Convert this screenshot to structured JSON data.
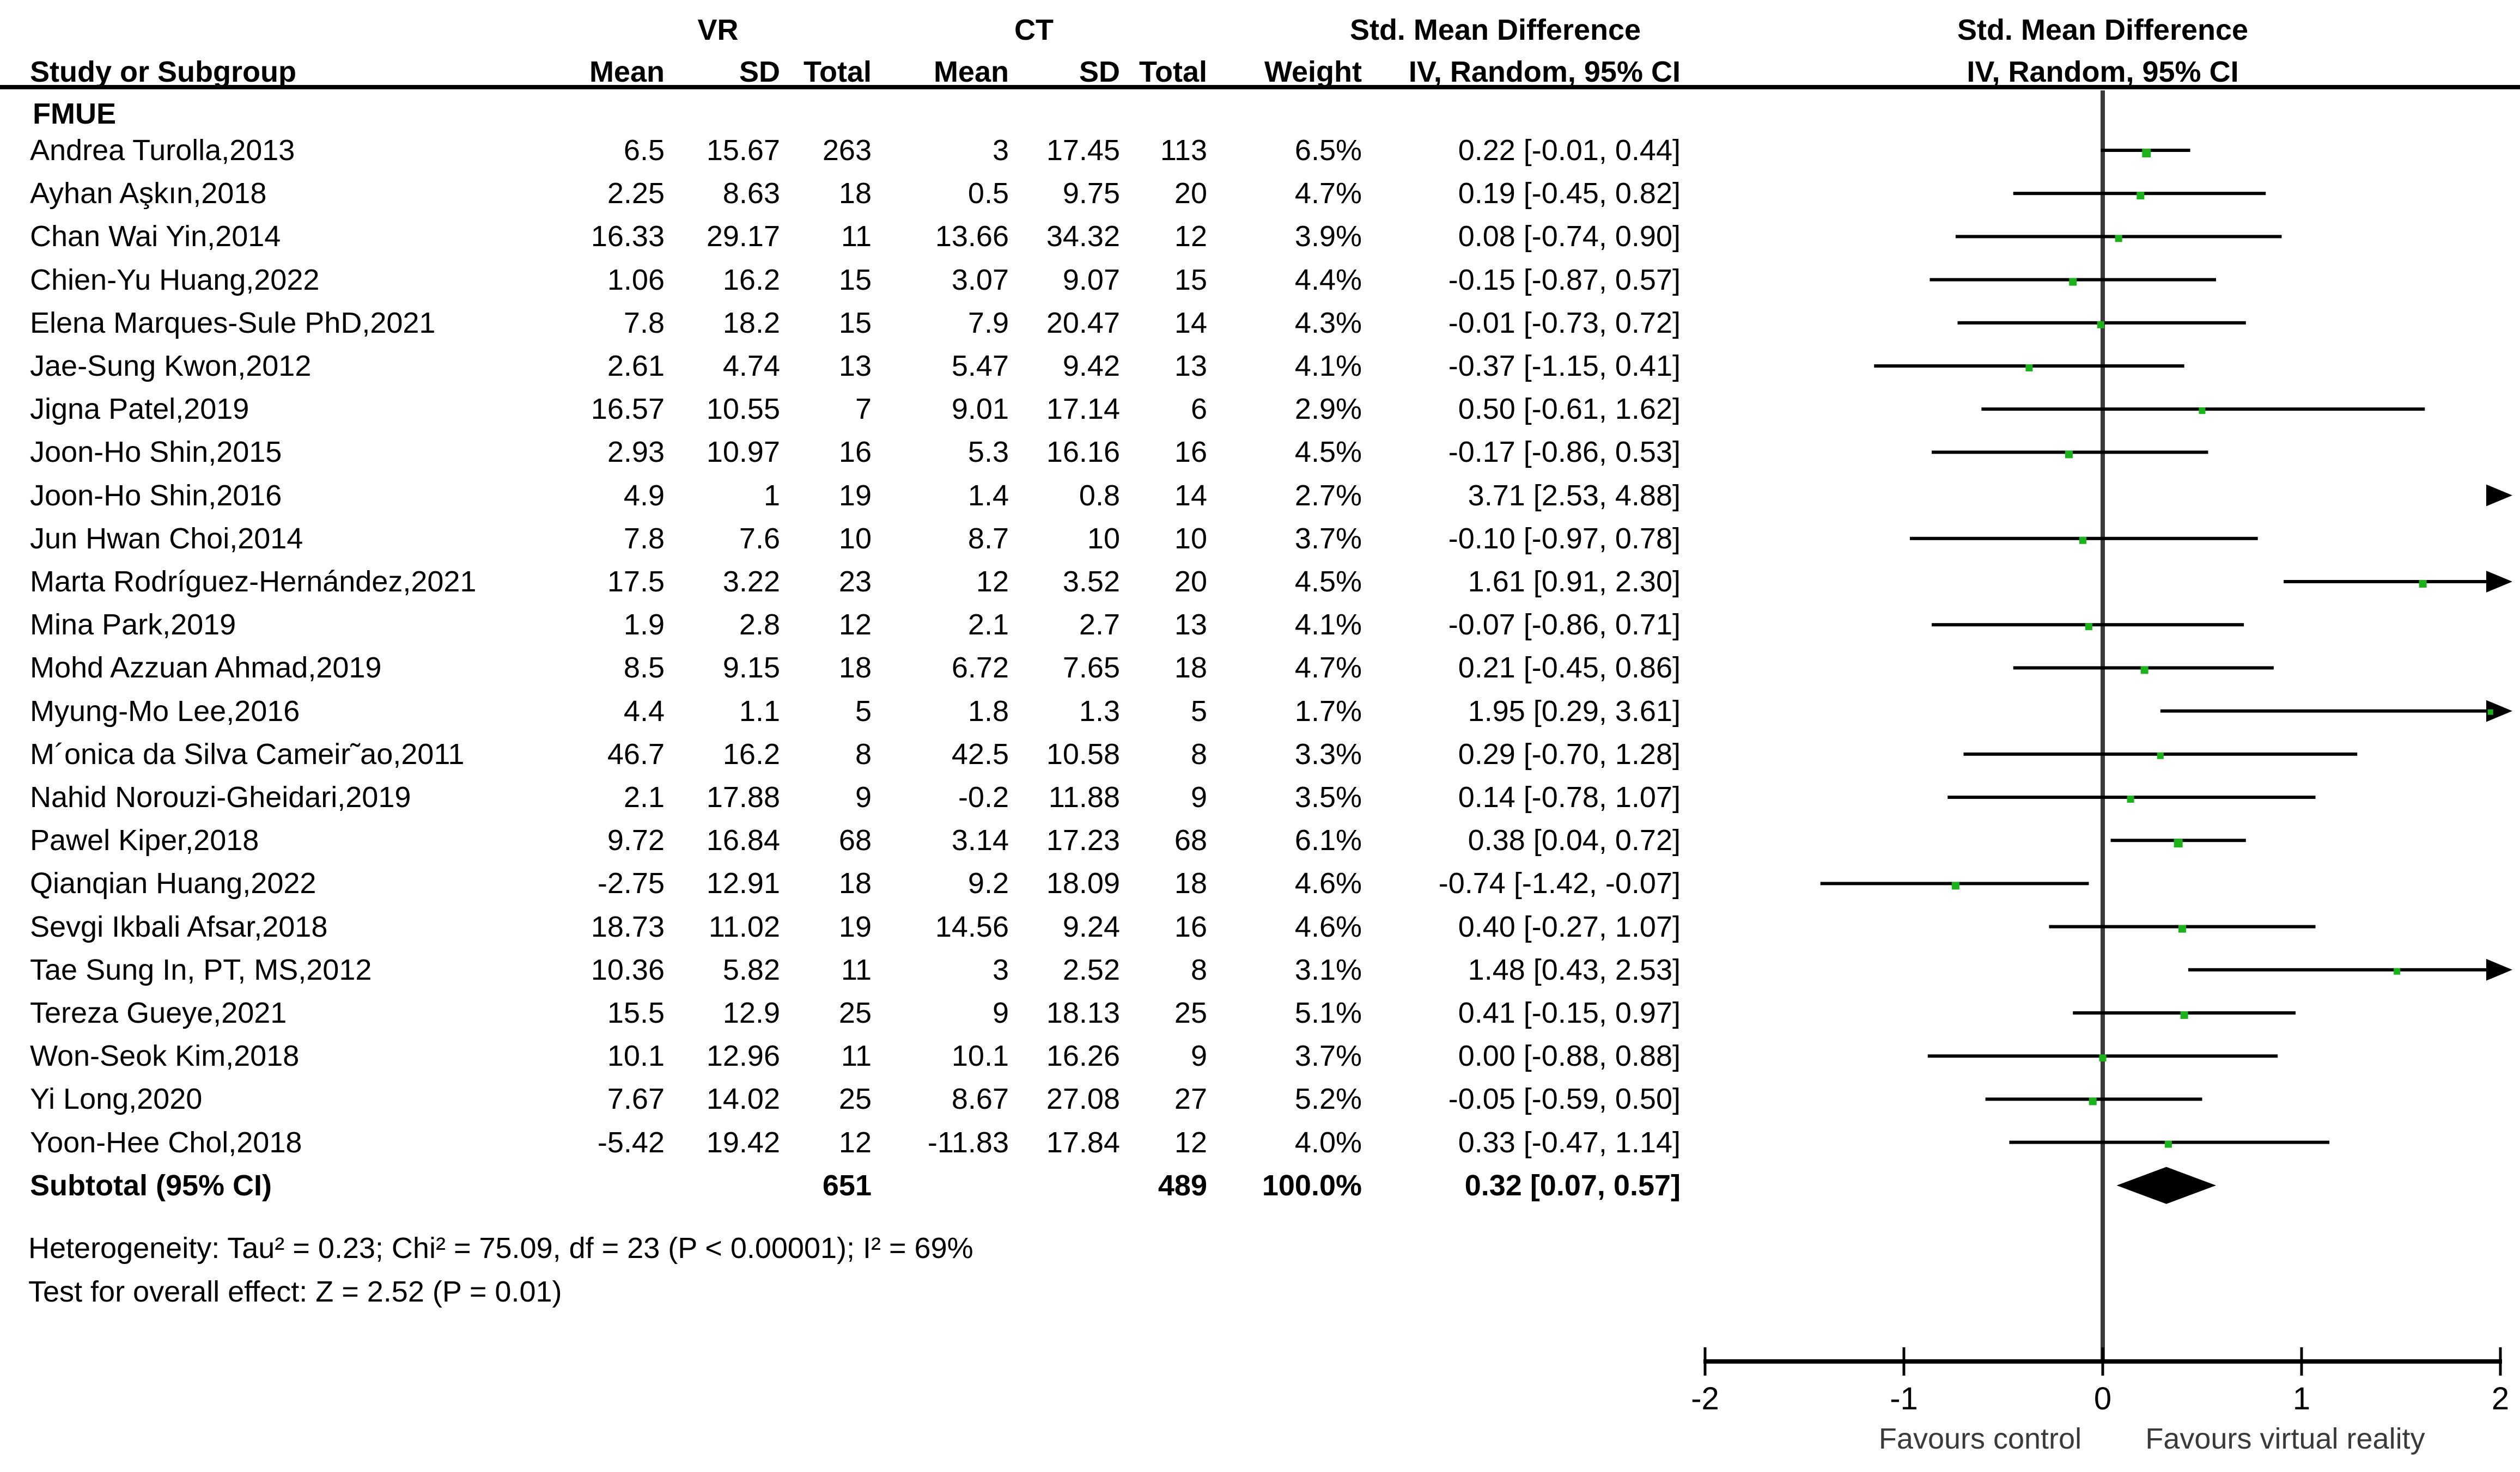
{
  "header": {
    "study": "Study or Subgroup",
    "vr": "VR",
    "ct": "CT",
    "mean": "Mean",
    "sd": "SD",
    "total": "Total",
    "weight": "Weight",
    "smd_line1": "Std. Mean Difference",
    "smd_line2": "IV, Random, 95% CI",
    "plot_line1": "Std. Mean Difference",
    "plot_line2": "IV, Random, 95% CI"
  },
  "chart_data": {
    "type": "forest",
    "effect_measure": "Std. Mean Difference",
    "model": "IV, Random, 95% CI",
    "subgroup_label": "FMUE",
    "x_range": [
      -2,
      2
    ],
    "x_ticks": [
      -2,
      -1,
      0,
      1,
      2
    ],
    "favours_left": "Favours control",
    "favours_right": "Favours virtual reality",
    "colors": {
      "marker": "#1CB21C",
      "line": "#000000",
      "diamond": "#000000",
      "zero_line": "#3A3A3A"
    },
    "studies": [
      {
        "name": "Andrea Turolla,2013",
        "vr_mean": "6.5",
        "vr_sd": "15.67",
        "vr_total": "263",
        "ct_mean": "3",
        "ct_sd": "17.45",
        "ct_total": "113",
        "weight": "6.5%",
        "ci_text": "0.22 [-0.01, 0.44]",
        "est": 0.22,
        "lo": -0.01,
        "hi": 0.44
      },
      {
        "name": "Ayhan Aşkın,2018",
        "vr_mean": "2.25",
        "vr_sd": "8.63",
        "vr_total": "18",
        "ct_mean": "0.5",
        "ct_sd": "9.75",
        "ct_total": "20",
        "weight": "4.7%",
        "ci_text": "0.19 [-0.45, 0.82]",
        "est": 0.19,
        "lo": -0.45,
        "hi": 0.82
      },
      {
        "name": "Chan Wai Yin,2014",
        "vr_mean": "16.33",
        "vr_sd": "29.17",
        "vr_total": "11",
        "ct_mean": "13.66",
        "ct_sd": "34.32",
        "ct_total": "12",
        "weight": "3.9%",
        "ci_text": "0.08 [-0.74, 0.90]",
        "est": 0.08,
        "lo": -0.74,
        "hi": 0.9
      },
      {
        "name": "Chien-Yu Huang,2022",
        "vr_mean": "1.06",
        "vr_sd": "16.2",
        "vr_total": "15",
        "ct_mean": "3.07",
        "ct_sd": "9.07",
        "ct_total": "15",
        "weight": "4.4%",
        "ci_text": "-0.15 [-0.87, 0.57]",
        "est": -0.15,
        "lo": -0.87,
        "hi": 0.57
      },
      {
        "name": "Elena Marques-Sule PhD,2021",
        "vr_mean": "7.8",
        "vr_sd": "18.2",
        "vr_total": "15",
        "ct_mean": "7.9",
        "ct_sd": "20.47",
        "ct_total": "14",
        "weight": "4.3%",
        "ci_text": "-0.01 [-0.73, 0.72]",
        "est": -0.01,
        "lo": -0.73,
        "hi": 0.72
      },
      {
        "name": "Jae-Sung Kwon,2012",
        "vr_mean": "2.61",
        "vr_sd": "4.74",
        "vr_total": "13",
        "ct_mean": "5.47",
        "ct_sd": "9.42",
        "ct_total": "13",
        "weight": "4.1%",
        "ci_text": "-0.37 [-1.15, 0.41]",
        "est": -0.37,
        "lo": -1.15,
        "hi": 0.41
      },
      {
        "name": "Jigna Patel,2019",
        "vr_mean": "16.57",
        "vr_sd": "10.55",
        "vr_total": "7",
        "ct_mean": "9.01",
        "ct_sd": "17.14",
        "ct_total": "6",
        "weight": "2.9%",
        "ci_text": "0.50 [-0.61, 1.62]",
        "est": 0.5,
        "lo": -0.61,
        "hi": 1.62
      },
      {
        "name": "Joon-Ho Shin,2015",
        "vr_mean": "2.93",
        "vr_sd": "10.97",
        "vr_total": "16",
        "ct_mean": "5.3",
        "ct_sd": "16.16",
        "ct_total": "16",
        "weight": "4.5%",
        "ci_text": "-0.17 [-0.86, 0.53]",
        "est": -0.17,
        "lo": -0.86,
        "hi": 0.53
      },
      {
        "name": "Joon-Ho Shin,2016",
        "vr_mean": "4.9",
        "vr_sd": "1",
        "vr_total": "19",
        "ct_mean": "1.4",
        "ct_sd": "0.8",
        "ct_total": "14",
        "weight": "2.7%",
        "ci_text": "3.71 [2.53, 4.88]",
        "est": 3.71,
        "lo": 2.53,
        "hi": 4.88
      },
      {
        "name": "Jun Hwan Choi,2014",
        "vr_mean": "7.8",
        "vr_sd": "7.6",
        "vr_total": "10",
        "ct_mean": "8.7",
        "ct_sd": "10",
        "ct_total": "10",
        "weight": "3.7%",
        "ci_text": "-0.10 [-0.97, 0.78]",
        "est": -0.1,
        "lo": -0.97,
        "hi": 0.78
      },
      {
        "name": "Marta Rodríguez-Hernández,2021",
        "vr_mean": "17.5",
        "vr_sd": "3.22",
        "vr_total": "23",
        "ct_mean": "12",
        "ct_sd": "3.52",
        "ct_total": "20",
        "weight": "4.5%",
        "ci_text": "1.61 [0.91, 2.30]",
        "est": 1.61,
        "lo": 0.91,
        "hi": 2.3
      },
      {
        "name": "Mina Park,2019",
        "vr_mean": "1.9",
        "vr_sd": "2.8",
        "vr_total": "12",
        "ct_mean": "2.1",
        "ct_sd": "2.7",
        "ct_total": "13",
        "weight": "4.1%",
        "ci_text": "-0.07 [-0.86, 0.71]",
        "est": -0.07,
        "lo": -0.86,
        "hi": 0.71
      },
      {
        "name": "Mohd Azzuan Ahmad,2019",
        "vr_mean": "8.5",
        "vr_sd": "9.15",
        "vr_total": "18",
        "ct_mean": "6.72",
        "ct_sd": "7.65",
        "ct_total": "18",
        "weight": "4.7%",
        "ci_text": "0.21 [-0.45, 0.86]",
        "est": 0.21,
        "lo": -0.45,
        "hi": 0.86
      },
      {
        "name": "Myung-Mo Lee,2016",
        "vr_mean": "4.4",
        "vr_sd": "1.1",
        "vr_total": "5",
        "ct_mean": "1.8",
        "ct_sd": "1.3",
        "ct_total": "5",
        "weight": "1.7%",
        "ci_text": "1.95 [0.29, 3.61]",
        "est": 1.95,
        "lo": 0.29,
        "hi": 3.61
      },
      {
        "name": "M´onica da Silva Cameir˜ao,2011",
        "vr_mean": "46.7",
        "vr_sd": "16.2",
        "vr_total": "8",
        "ct_mean": "42.5",
        "ct_sd": "10.58",
        "ct_total": "8",
        "weight": "3.3%",
        "ci_text": "0.29 [-0.70, 1.28]",
        "est": 0.29,
        "lo": -0.7,
        "hi": 1.28
      },
      {
        "name": "Nahid Norouzi-Gheidari,2019",
        "vr_mean": "2.1",
        "vr_sd": "17.88",
        "vr_total": "9",
        "ct_mean": "-0.2",
        "ct_sd": "11.88",
        "ct_total": "9",
        "weight": "3.5%",
        "ci_text": "0.14 [-0.78, 1.07]",
        "est": 0.14,
        "lo": -0.78,
        "hi": 1.07
      },
      {
        "name": "Pawel Kiper,2018",
        "vr_mean": "9.72",
        "vr_sd": "16.84",
        "vr_total": "68",
        "ct_mean": "3.14",
        "ct_sd": "17.23",
        "ct_total": "68",
        "weight": "6.1%",
        "ci_text": "0.38 [0.04, 0.72]",
        "est": 0.38,
        "lo": 0.04,
        "hi": 0.72
      },
      {
        "name": "Qianqian Huang,2022",
        "vr_mean": "-2.75",
        "vr_sd": "12.91",
        "vr_total": "18",
        "ct_mean": "9.2",
        "ct_sd": "18.09",
        "ct_total": "18",
        "weight": "4.6%",
        "ci_text": "-0.74 [-1.42, -0.07]",
        "est": -0.74,
        "lo": -1.42,
        "hi": -0.07
      },
      {
        "name": "Sevgi Ikbali Afsar,2018",
        "vr_mean": "18.73",
        "vr_sd": "11.02",
        "vr_total": "19",
        "ct_mean": "14.56",
        "ct_sd": "9.24",
        "ct_total": "16",
        "weight": "4.6%",
        "ci_text": "0.40 [-0.27, 1.07]",
        "est": 0.4,
        "lo": -0.27,
        "hi": 1.07
      },
      {
        "name": "Tae Sung In, PT, MS,2012",
        "vr_mean": "10.36",
        "vr_sd": "5.82",
        "vr_total": "11",
        "ct_mean": "3",
        "ct_sd": "2.52",
        "ct_total": "8",
        "weight": "3.1%",
        "ci_text": "1.48 [0.43, 2.53]",
        "est": 1.48,
        "lo": 0.43,
        "hi": 2.53
      },
      {
        "name": "Tereza Gueye,2021",
        "vr_mean": "15.5",
        "vr_sd": "12.9",
        "vr_total": "25",
        "ct_mean": "9",
        "ct_sd": "18.13",
        "ct_total": "25",
        "weight": "5.1%",
        "ci_text": "0.41 [-0.15, 0.97]",
        "est": 0.41,
        "lo": -0.15,
        "hi": 0.97
      },
      {
        "name": "Won-Seok Kim,2018",
        "vr_mean": "10.1",
        "vr_sd": "12.96",
        "vr_total": "11",
        "ct_mean": "10.1",
        "ct_sd": "16.26",
        "ct_total": "9",
        "weight": "3.7%",
        "ci_text": "0.00 [-0.88, 0.88]",
        "est": 0.0,
        "lo": -0.88,
        "hi": 0.88
      },
      {
        "name": "Yi Long,2020",
        "vr_mean": "7.67",
        "vr_sd": "14.02",
        "vr_total": "25",
        "ct_mean": "8.67",
        "ct_sd": "27.08",
        "ct_total": "27",
        "weight": "5.2%",
        "ci_text": "-0.05 [-0.59, 0.50]",
        "est": -0.05,
        "lo": -0.59,
        "hi": 0.5
      },
      {
        "name": "Yoon-Hee Chol,2018",
        "vr_mean": "-5.42",
        "vr_sd": "19.42",
        "vr_total": "12",
        "ct_mean": "-11.83",
        "ct_sd": "17.84",
        "ct_total": "12",
        "weight": "4.0%",
        "ci_text": "0.33 [-0.47, 1.14]",
        "est": 0.33,
        "lo": -0.47,
        "hi": 1.14
      }
    ],
    "subtotal": {
      "label": "Subtotal (95% CI)",
      "vr_total": "651",
      "ct_total": "489",
      "weight": "100.0%",
      "ci_text": "0.32 [0.07, 0.57]",
      "est": 0.32,
      "lo": 0.07,
      "hi": 0.57
    },
    "heterogeneity": "Heterogeneity: Tau² = 0.23; Chi² = 75.09, df = 23 (P < 0.00001); I² = 69%",
    "overall_effect": "Test for overall effect: Z = 2.52 (P = 0.01)"
  }
}
